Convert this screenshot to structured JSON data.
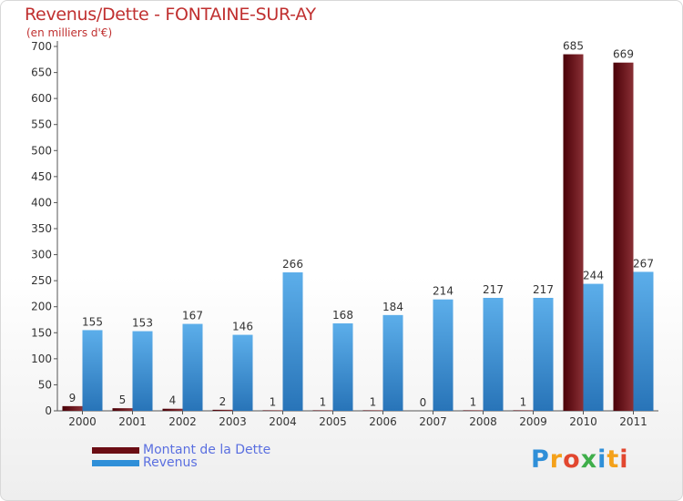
{
  "title": "Revenus/Dette - FONTAINE-SUR-AY",
  "subtitle": "(en milliers d'€)",
  "logo": "Proxiti",
  "colors": {
    "title": "#c03030",
    "dette": "#6b0d14",
    "revenus": "#2f8fd8",
    "axis": "#555555",
    "grid": "#cccccc"
  },
  "chart_data": {
    "type": "bar",
    "categories": [
      "2000",
      "2001",
      "2002",
      "2003",
      "2004",
      "2005",
      "2006",
      "2007",
      "2008",
      "2009",
      "2010",
      "2011"
    ],
    "series": [
      {
        "name": "Montant de la Dette",
        "values": [
          9,
          5,
          4,
          2,
          1,
          1,
          1,
          0,
          1,
          1,
          685,
          669
        ]
      },
      {
        "name": "Revenus",
        "values": [
          155,
          153,
          167,
          146,
          266,
          168,
          184,
          214,
          217,
          217,
          244,
          267
        ]
      }
    ],
    "yticks": [
      0,
      50,
      100,
      150,
      200,
      250,
      300,
      350,
      400,
      450,
      500,
      550,
      600,
      650,
      700
    ],
    "ylim": [
      0,
      700
    ],
    "grid": false,
    "legend": "bottom-left"
  }
}
